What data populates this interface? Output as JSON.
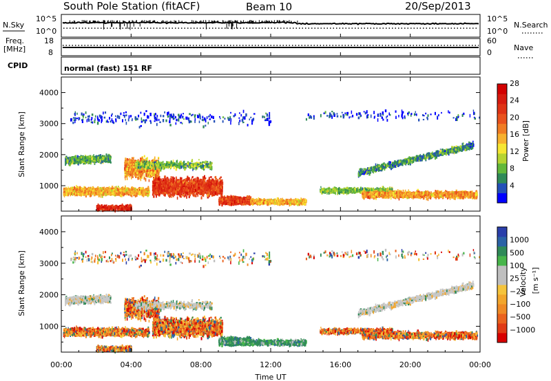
{
  "header": {
    "station": "South Pole Station (fitACF)",
    "beam": "Beam 10",
    "date": "20/Sep/2013"
  },
  "summary": {
    "nsky_label": "N.Sky",
    "nsearch_label": "N.Search",
    "nsky_ticks": [
      "10^5",
      "10^0"
    ],
    "nsearch_ticks": [
      "10^5",
      "10^0"
    ],
    "freq_label_line1": "Freq.",
    "freq_label_line2": "[MHz]",
    "freq_ticks": [
      "18",
      "8"
    ],
    "nave_label": "Nave",
    "nave_ticks": [
      "60",
      "0"
    ],
    "cpid_label": "CPID",
    "cpid_text": "normal (fast) 151 RF"
  },
  "chart_data": [
    {
      "type": "heatmap",
      "panel": "power",
      "ylabel": "Slant Range [km]",
      "yticks": [
        1000,
        2000,
        3000,
        4000
      ],
      "ylim": [
        180,
        4500
      ],
      "x_ticks": [
        "00:00",
        "04:00",
        "08:00",
        "12:00",
        "16:00",
        "20:00",
        "00:00"
      ],
      "xlim_hours": [
        0,
        24
      ],
      "colorbar": {
        "label": "Power [dB]",
        "ticks": [
          "4",
          "8",
          "12",
          "16",
          "20",
          "24",
          "28"
        ],
        "range": [
          0,
          30
        ],
        "colors": [
          "#0000ff",
          "#2350b8",
          "#2f8a58",
          "#62b83a",
          "#b6d431",
          "#f6e632",
          "#f7b12e",
          "#f07c23",
          "#e9521d",
          "#df3315",
          "#d71b0f",
          "#d20000"
        ]
      }
    },
    {
      "type": "heatmap",
      "panel": "velocity",
      "ylabel": "Slant Range [km]",
      "yticks": [
        1000,
        2000,
        3000,
        4000
      ],
      "ylim": [
        180,
        4500
      ],
      "x_ticks": [
        "00:00",
        "04:00",
        "08:00",
        "12:00",
        "16:00",
        "20:00",
        "00:00"
      ],
      "xlabel": "Time UT",
      "xlim_hours": [
        0,
        24
      ],
      "colorbar": {
        "label": "Velocity",
        "label_unit": "[m s⁻¹]",
        "ticks": [
          "1000",
          "500",
          "100",
          "25",
          "−25",
          "−100",
          "−500",
          "−1000"
        ],
        "colors": [
          "#2a3faa",
          "#2b63a6",
          "#2f8a58",
          "#47b54a",
          "#bfbfbf",
          "#bfbfbf",
          "#f5c43c",
          "#f2a62c",
          "#ef8a25",
          "#ea621d",
          "#e03a15",
          "#d80000"
        ]
      }
    }
  ]
}
